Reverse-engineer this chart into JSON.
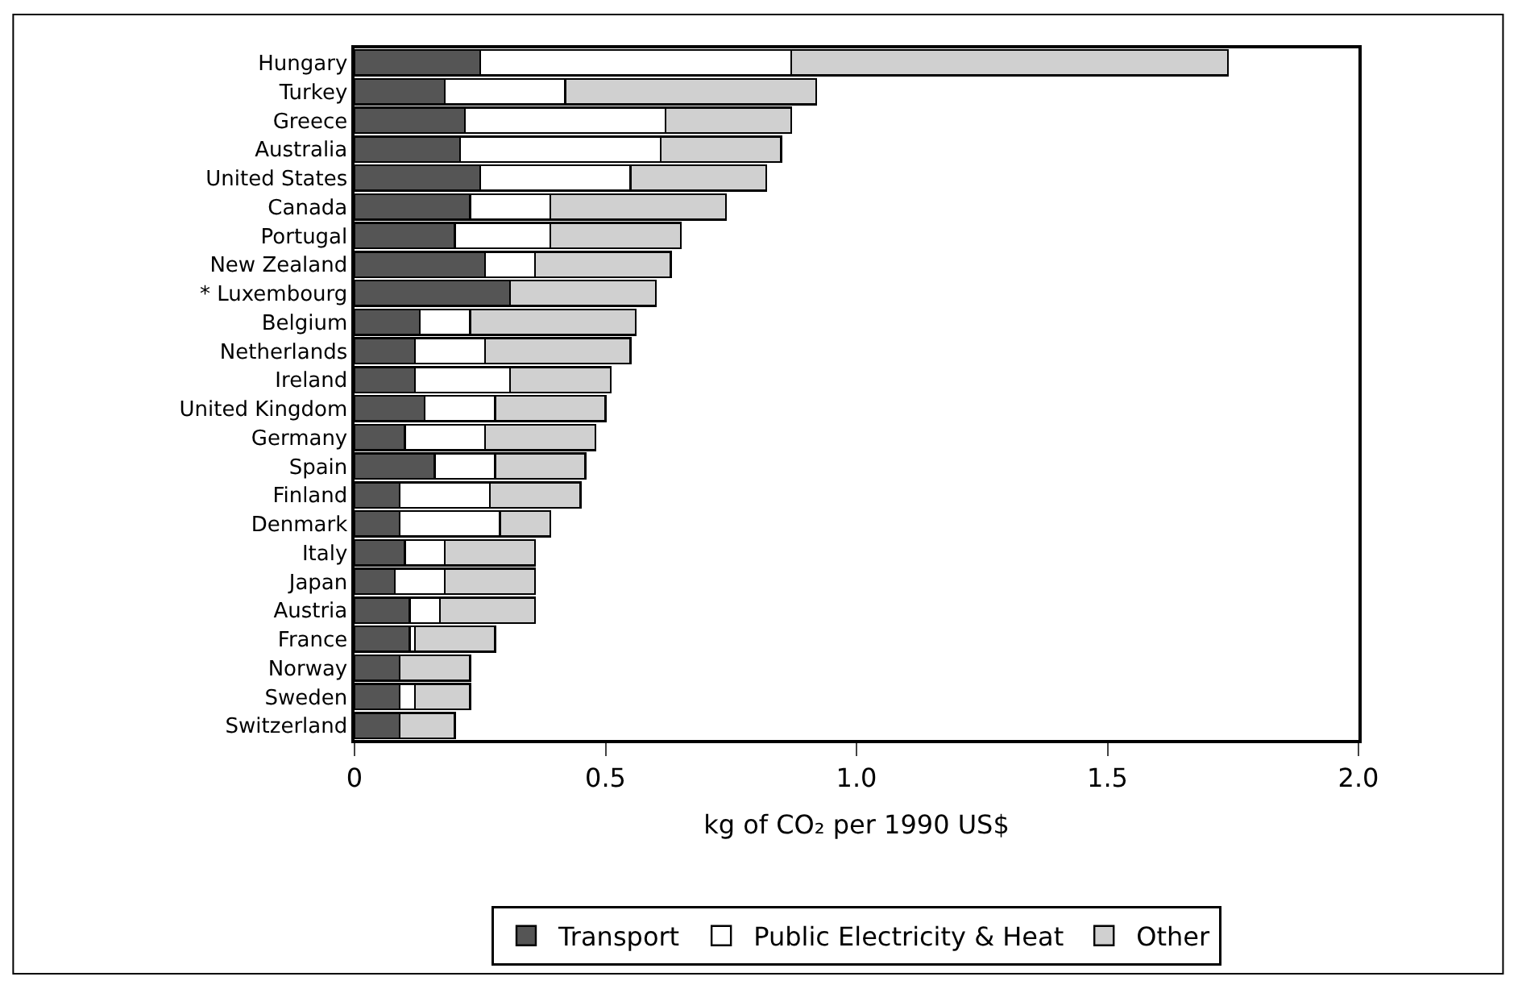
{
  "chart_data": {
    "type": "bar",
    "orientation": "horizontal",
    "stacked": true,
    "xlabel": "kg of CO₂ per 1990 US$",
    "categories": [
      "Hungary",
      "Turkey",
      "Greece",
      "Australia",
      "United States",
      "Canada",
      "Portugal",
      "New Zealand",
      "* Luxembourg",
      "Belgium",
      "Netherlands",
      "Ireland",
      "United Kingdom",
      "Germany",
      "Spain",
      "Finland",
      "Denmark",
      "Italy",
      "Japan",
      "Austria",
      "France",
      "Norway",
      "Sweden",
      "Switzerland"
    ],
    "series": [
      {
        "name": "Transport",
        "color": "#555555",
        "values": [
          0.25,
          0.18,
          0.22,
          0.21,
          0.25,
          0.23,
          0.2,
          0.26,
          0.31,
          0.13,
          0.12,
          0.12,
          0.14,
          0.1,
          0.16,
          0.09,
          0.09,
          0.1,
          0.08,
          0.11,
          0.11,
          0.09,
          0.09,
          0.09
        ]
      },
      {
        "name": "Public Electricity & Heat",
        "color": "#ffffff",
        "values": [
          0.62,
          0.24,
          0.4,
          0.4,
          0.3,
          0.16,
          0.19,
          0.1,
          0,
          0.1,
          0.14,
          0.19,
          0.14,
          0.16,
          0.12,
          0.18,
          0.2,
          0.08,
          0.1,
          0.06,
          0.01,
          0,
          0.03,
          0
        ]
      },
      {
        "name": "Other",
        "color": "#d0d0d0",
        "values": [
          0.87,
          0.5,
          0.25,
          0.24,
          0.27,
          0.35,
          0.26,
          0.27,
          0.29,
          0.33,
          0.29,
          0.2,
          0.22,
          0.22,
          0.18,
          0.18,
          0.1,
          0.18,
          0.18,
          0.19,
          0.16,
          0.14,
          0.11,
          0.11
        ]
      }
    ],
    "xlim": [
      0,
      2
    ],
    "xticks": [
      0,
      0.5,
      {
        "value": 1,
        "label": "1.0"
      },
      1.5,
      {
        "value": 2,
        "label": "2.0"
      }
    ],
    "legend": "bottom"
  }
}
